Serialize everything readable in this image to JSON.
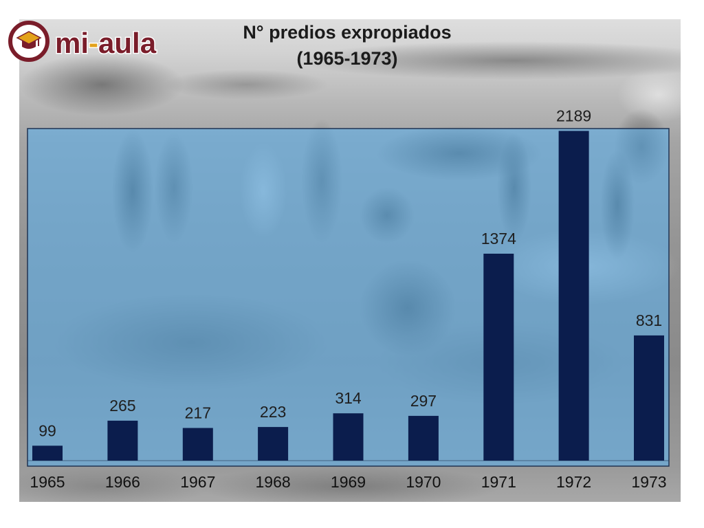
{
  "logo": {
    "icon": "graduation-cap-icon",
    "text_part_1": "mi",
    "text_separator": "-",
    "text_part_2": "aula",
    "primary_color": "#7a1d2a",
    "accent_color": "#e3a21a"
  },
  "chart_data": {
    "type": "bar",
    "title": "N° predios expropiados",
    "subtitle": "(1965-1973)",
    "categories": [
      "1965",
      "1966",
      "1967",
      "1968",
      "1969",
      "1970",
      "1971",
      "1972",
      "1973"
    ],
    "values": [
      99,
      265,
      217,
      223,
      314,
      297,
      1374,
      2189,
      831
    ],
    "ylim": [
      0,
      2200
    ],
    "grid": false,
    "bar_color": "#0b1d4d",
    "plot_background_color": "#5fafe6",
    "text_color": "#1e1e1e"
  }
}
